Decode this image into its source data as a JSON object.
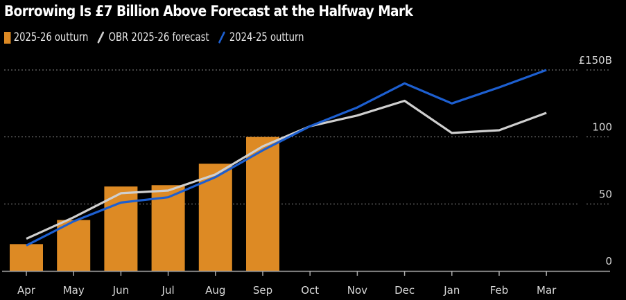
{
  "chart_data": {
    "type": "bar+line",
    "title": "Borrowing Is £7 Billion Above Forecast at the Halfway Mark",
    "xlabel": "",
    "ylabel": "",
    "categories": [
      "Apr",
      "May",
      "Jun",
      "Jul",
      "Aug",
      "Sep",
      "Oct",
      "Nov",
      "Dec",
      "Jan",
      "Feb",
      "Mar"
    ],
    "ylim": [
      0,
      150
    ],
    "yticks": [
      0,
      50,
      100,
      150
    ],
    "ytick_labels": [
      "0",
      "50",
      "100",
      "£150B"
    ],
    "y_axis_side": "right",
    "grid": true,
    "legend_position": "top-left",
    "series": [
      {
        "name": "2025-26 outturn",
        "type": "bar",
        "color": "#dd8a24",
        "values": [
          20,
          38,
          63,
          64,
          80,
          100,
          null,
          null,
          null,
          null,
          null,
          null
        ]
      },
      {
        "name": "OBR 2025-26 forecast",
        "type": "line",
        "color": "#cfcfcf",
        "values": [
          24,
          40,
          58,
          60,
          72,
          93,
          108,
          116,
          127,
          103,
          105,
          118
        ]
      },
      {
        "name": "2024-25 outturn",
        "type": "line",
        "color": "#1d5fd0",
        "values": [
          19,
          37,
          51,
          55,
          70,
          90,
          108,
          122,
          140,
          125,
          137,
          150
        ]
      }
    ]
  }
}
